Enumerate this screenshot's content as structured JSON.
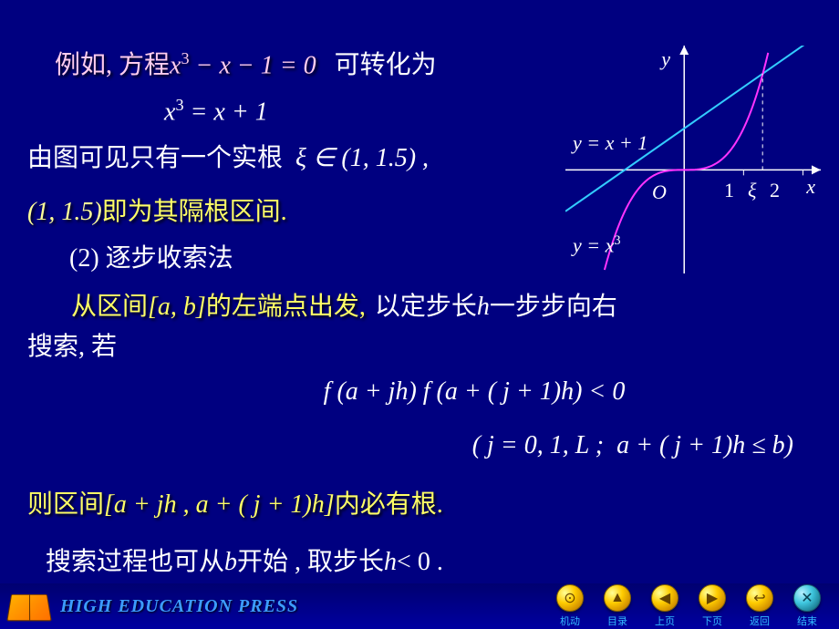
{
  "slide": {
    "l1_prefix": "例如, 方程",
    "l1_eq": "x³ − x − 1 = 0",
    "l1_suffix": "可转化为",
    "l2_eq": "x³ = x + 1",
    "l3_prefix": "由图可见只有一个实根",
    "l3_eq": "ξ ∈ (1, 1.5) ,",
    "l4_interval": "(1, 1.5)",
    "l4_suffix": "即为其隔根区间.",
    "l5": "(2)  逐步收索法",
    "l6_prefix": "从区间",
    "l6_eq": "[a, b]",
    "l6_mid": "的左端点出发,",
    "l6_suffix_a": "以定步长 ",
    "l6_h": "h",
    "l6_suffix_b": " 一步步向右",
    "l7": "搜索, 若",
    "l8_eq": "f (a + jh) f (a + ( j + 1)h) < 0",
    "l9_eq": "( j = 0, 1, L ;  a + ( j + 1)h ≤ b)",
    "l10_prefix": "则区间",
    "l10_eq": "[a + jh , a + ( j + 1)h]",
    "l10_suffix": "内必有根.",
    "l11_a": "搜索过程也可从 ",
    "l11_b_var": "b",
    "l11_b": " 开始 , 取步长 ",
    "l11_h_var": "h",
    "l11_c": " < 0 ."
  },
  "chart": {
    "y_axis_label": "y",
    "x_axis_label": "x",
    "origin_label": "O",
    "line_label": "y = x + 1",
    "cubic_label": "y = x",
    "cubic_exp": "3",
    "tick1": "1",
    "tick_xi": "ξ",
    "tick2": "2",
    "line_color": "#33ccff",
    "cubic_color": "#ff33ff",
    "axis_color": "#ffffff",
    "dash_color": "#ffffff",
    "xlim": [
      -2,
      2.3
    ],
    "ylim": [
      -2.5,
      3
    ],
    "intersection_x": 1.32
  },
  "footer": {
    "press": "HIGH EDUCATION PRESS",
    "nav": [
      {
        "label": "机动",
        "glyph": "⊙",
        "class": "gold"
      },
      {
        "label": "目录",
        "glyph": "▲",
        "class": "gold"
      },
      {
        "label": "上页",
        "glyph": "◀",
        "class": "gold"
      },
      {
        "label": "下页",
        "glyph": "▶",
        "class": "gold"
      },
      {
        "label": "返回",
        "glyph": "↩",
        "class": "gold"
      },
      {
        "label": "结束",
        "glyph": "✕",
        "class": "teal"
      }
    ]
  }
}
